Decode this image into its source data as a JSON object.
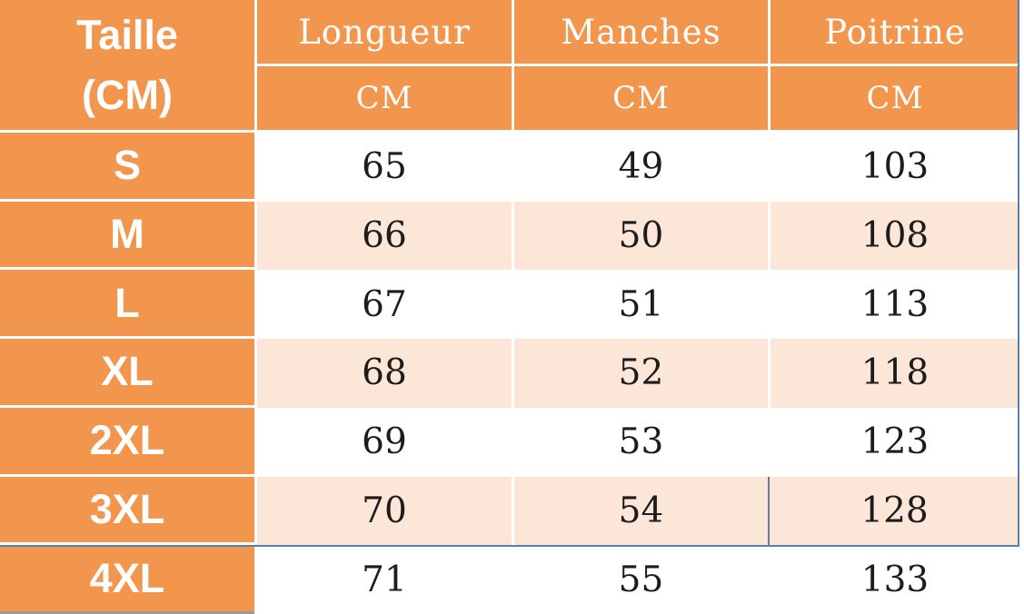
{
  "chart_data": {
    "type": "table",
    "header": {
      "size_col": {
        "line1": "Taille",
        "line2": "(CM)"
      },
      "measure_cols": [
        {
          "label": "Longueur",
          "unit": "CM"
        },
        {
          "label": "Manches",
          "unit": "CM"
        },
        {
          "label": "Poitrine",
          "unit": "CM"
        }
      ]
    },
    "rows": [
      {
        "size": "S",
        "longueur": "65",
        "manches": "49",
        "poitrine": "103"
      },
      {
        "size": "M",
        "longueur": "66",
        "manches": "50",
        "poitrine": "108"
      },
      {
        "size": "L",
        "longueur": "67",
        "manches": "51",
        "poitrine": "113"
      },
      {
        "size": "XL",
        "longueur": "68",
        "manches": "52",
        "poitrine": "118"
      },
      {
        "size": "2XL",
        "longueur": "69",
        "manches": "53",
        "poitrine": "123"
      },
      {
        "size": "3XL",
        "longueur": "70",
        "manches": "54",
        "poitrine": "128"
      },
      {
        "size": "4XL",
        "longueur": "71",
        "manches": "55",
        "poitrine": "133"
      }
    ]
  },
  "colors": {
    "orange": "#F3964D",
    "row_alt": "#FBE6D7",
    "selection": "#5B80A5",
    "border_white": "#FFFFFF",
    "text_dark": "#1C1C1C",
    "text_light": "#FFFFFF",
    "gray_border": "#9B9B9B"
  }
}
